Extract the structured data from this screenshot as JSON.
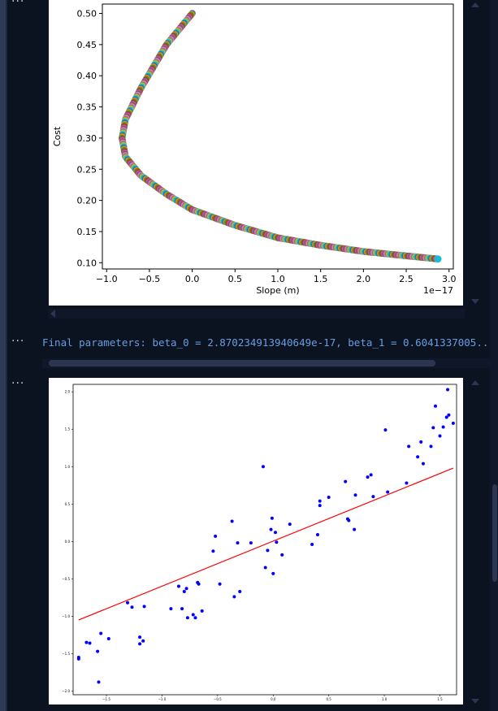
{
  "cells": {
    "more_glyph": "···"
  },
  "output_text": {
    "line": "Final parameters: beta_0 = 2.870234913940649e-17, beta_1 = 0.6041337005..."
  },
  "chart_data": [
    {
      "type": "scatter",
      "title": "",
      "xlabel": "Slope (m)",
      "ylabel": "Cost",
      "x_multiplier": "1e−17",
      "xlim": [
        -1.0,
        3.0
      ],
      "ylim": [
        0.1,
        0.5
      ],
      "xticks": [
        "−1.0",
        "−0.5",
        "0.0",
        "0.5",
        "1.0",
        "1.5",
        "2.0",
        "2.5",
        "3.0"
      ],
      "yticks": [
        "0.10",
        "0.15",
        "0.20",
        "0.25",
        "0.30",
        "0.35",
        "0.40",
        "0.45",
        "0.50"
      ],
      "curve": {
        "description_points": [
          [
            0.0,
            0.5
          ],
          [
            -0.3,
            0.45
          ],
          [
            -0.6,
            0.38
          ],
          [
            -0.78,
            0.33
          ],
          [
            -0.82,
            0.3
          ],
          [
            -0.78,
            0.27
          ],
          [
            -0.6,
            0.24
          ],
          [
            -0.3,
            0.21
          ],
          [
            0.0,
            0.185
          ],
          [
            0.5,
            0.16
          ],
          [
            1.0,
            0.14
          ],
          [
            1.5,
            0.128
          ],
          [
            2.0,
            0.118
          ],
          [
            2.5,
            0.111
          ],
          [
            2.87,
            0.106
          ]
        ]
      }
    },
    {
      "type": "scatter",
      "title": "",
      "xlabel": "",
      "ylabel": "",
      "xticks": [
        "−1.5",
        "−1.0",
        "−0.5",
        "0.0",
        "0.5",
        "1.0",
        "1.5"
      ],
      "yticks": [
        "−2.0",
        "−1.5",
        "−1.0",
        "−0.5",
        "0.0",
        "0.5",
        "1.0",
        "1.5",
        "2.0"
      ],
      "xlim": [
        -1.8,
        1.65
      ],
      "ylim": [
        -2.05,
        2.1
      ],
      "points": [
        [
          -1.75,
          -1.55
        ],
        [
          -1.75,
          -1.57
        ],
        [
          -1.68,
          -1.35
        ],
        [
          -1.65,
          -1.36
        ],
        [
          -1.58,
          -1.47
        ],
        [
          -1.57,
          -1.88
        ],
        [
          -1.55,
          -1.23
        ],
        [
          -1.48,
          -1.3
        ],
        [
          -1.31,
          -0.82
        ],
        [
          -1.27,
          -0.88
        ],
        [
          -1.2,
          -1.28
        ],
        [
          -1.2,
          -1.37
        ],
        [
          -1.17,
          -1.33
        ],
        [
          -1.16,
          -0.87
        ],
        [
          -0.92,
          -0.9
        ],
        [
          -0.85,
          -0.6
        ],
        [
          -0.82,
          -0.9
        ],
        [
          -0.8,
          -0.67
        ],
        [
          -0.78,
          -0.63
        ],
        [
          -0.77,
          -1.02
        ],
        [
          -0.72,
          -0.98
        ],
        [
          -0.7,
          -1.02
        ],
        [
          -0.68,
          -0.55
        ],
        [
          -0.67,
          -0.57
        ],
        [
          -0.64,
          -0.93
        ],
        [
          -0.54,
          -0.13
        ],
        [
          -0.52,
          0.07
        ],
        [
          -0.48,
          -0.57
        ],
        [
          -0.37,
          0.27
        ],
        [
          -0.35,
          -0.74
        ],
        [
          -0.32,
          -0.02
        ],
        [
          -0.3,
          -0.67
        ],
        [
          -0.2,
          -0.02
        ],
        [
          -0.09,
          1.0
        ],
        [
          -0.07,
          -0.35
        ],
        [
          -0.05,
          -0.12
        ],
        [
          -0.02,
          0.16
        ],
        [
          -0.01,
          0.31
        ],
        [
          0.0,
          -0.43
        ],
        [
          0.02,
          0.12
        ],
        [
          0.03,
          -0.01
        ],
        [
          0.08,
          -0.18
        ],
        [
          0.15,
          0.23
        ],
        [
          0.35,
          -0.04
        ],
        [
          0.4,
          0.09
        ],
        [
          0.42,
          0.54
        ],
        [
          0.42,
          0.48
        ],
        [
          0.5,
          0.59
        ],
        [
          0.65,
          0.8
        ],
        [
          0.67,
          0.3
        ],
        [
          0.68,
          0.28
        ],
        [
          0.73,
          0.16
        ],
        [
          0.74,
          0.62
        ],
        [
          0.85,
          0.86
        ],
        [
          0.88,
          0.89
        ],
        [
          0.9,
          0.6
        ],
        [
          1.01,
          1.49
        ],
        [
          1.03,
          0.66
        ],
        [
          1.2,
          0.78
        ],
        [
          1.22,
          1.27
        ],
        [
          1.3,
          1.13
        ],
        [
          1.33,
          1.33
        ],
        [
          1.35,
          1.04
        ],
        [
          1.42,
          1.27
        ],
        [
          1.44,
          1.52
        ],
        [
          1.46,
          1.81
        ],
        [
          1.5,
          1.41
        ],
        [
          1.53,
          1.53
        ],
        [
          1.56,
          1.66
        ],
        [
          1.57,
          2.03
        ],
        [
          1.58,
          1.69
        ],
        [
          1.62,
          1.58
        ]
      ],
      "line": {
        "x": [
          -1.75,
          1.62
        ],
        "y": [
          -1.05,
          0.98
        ]
      },
      "colors": {
        "points": "#0000ff",
        "line": "#ff0000"
      }
    }
  ]
}
